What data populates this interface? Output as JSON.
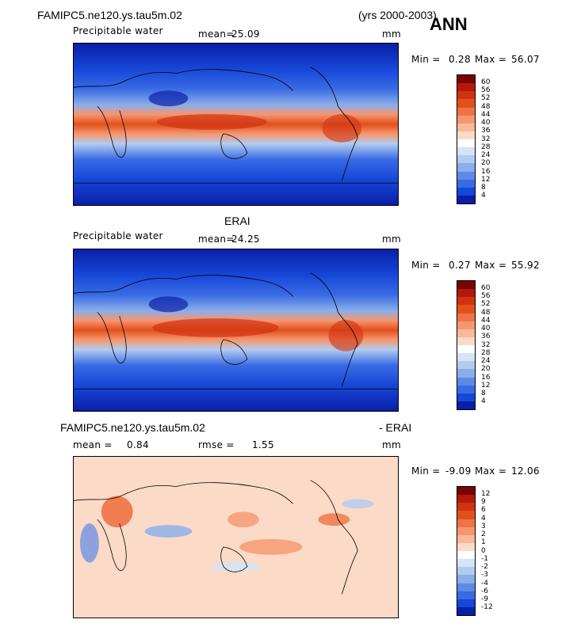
{
  "header": {
    "case_title": "FAMIPC5.ne120.ys.tau5m.02",
    "years": "(yrs 2000-2003)",
    "season": "ANN"
  },
  "panels": [
    {
      "id": "model",
      "variable": "Precipitable water",
      "mean_label": "mean=",
      "mean_value": "25.09",
      "units": "mm",
      "min_label": "Min =",
      "min_value": "0.28",
      "max_label": "Max =",
      "max_value": "56.07",
      "colorbar_labels": [
        "60",
        "56",
        "52",
        "48",
        "44",
        "40",
        "36",
        "32",
        "28",
        "24",
        "20",
        "16",
        "12",
        "8",
        "4"
      ]
    },
    {
      "id": "obs",
      "title": "ERAI",
      "variable": "Precipitable water",
      "mean_label": "mean=",
      "mean_value": "24.25",
      "units": "mm",
      "min_label": "Min =",
      "min_value": "0.27",
      "max_label": "Max =",
      "max_value": "55.92",
      "colorbar_labels": [
        "60",
        "56",
        "52",
        "48",
        "44",
        "40",
        "36",
        "32",
        "28",
        "24",
        "20",
        "16",
        "12",
        "8",
        "4"
      ]
    },
    {
      "id": "diff",
      "title_left": "FAMIPC5.ne120.ys.tau5m.02",
      "title_right": "- ERAI",
      "mean_label": "mean =",
      "mean_value": "0.84",
      "rmse_label": "rmse =",
      "rmse_value": "1.55",
      "units": "mm",
      "min_label": "Min =",
      "min_value": "-9.09",
      "max_label": "Max =",
      "max_value": "12.06",
      "colorbar_labels": [
        "12",
        "9",
        "6",
        "4",
        "3",
        "2",
        "1",
        "0",
        "-1",
        "-2",
        "-3",
        "-4",
        "-6",
        "-9",
        "-12"
      ]
    }
  ],
  "colors": {
    "abs_scale": [
      "#7a0403",
      "#b3190b",
      "#d1320f",
      "#e2501c",
      "#ef7344",
      "#f6966f",
      "#f9b899",
      "#fbdac7",
      "#ffffff",
      "#d5e4f6",
      "#b2ccef",
      "#8aaeea",
      "#5e8ae6",
      "#386ae4",
      "#1747d9",
      "#0a1fa8"
    ],
    "diff_scale": [
      "#7a0403",
      "#b3190b",
      "#d1320f",
      "#e2501c",
      "#ef7344",
      "#f6966f",
      "#f9b899",
      "#fbdac7",
      "#ffffff",
      "#d5e4f6",
      "#b2ccef",
      "#8aaeea",
      "#5e8ae6",
      "#386ae4",
      "#1747d9",
      "#0a1fa8"
    ]
  }
}
